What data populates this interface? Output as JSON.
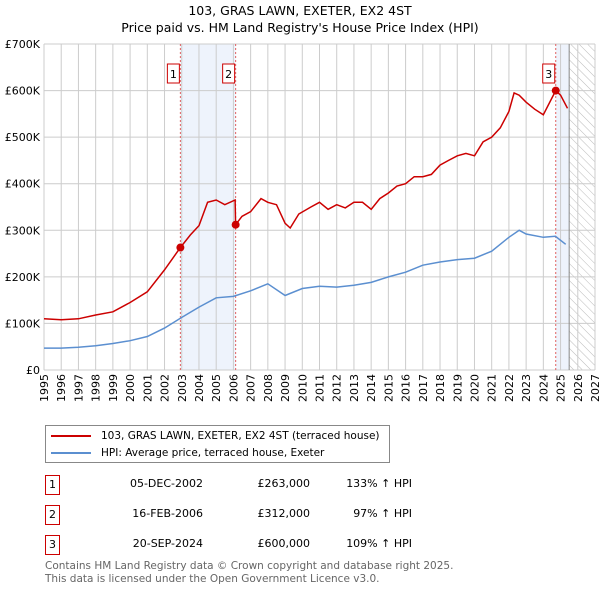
{
  "title": "103, GRAS LAWN, EXETER, EX2 4ST",
  "subtitle": "Price paid vs. HM Land Registry's House Price Index (HPI)",
  "chart_data": {
    "type": "line",
    "title": "103, GRAS LAWN, EXETER, EX2 4ST",
    "subtitle": "Price paid vs. HM Land Registry's House Price Index (HPI)",
    "xlim": [
      1995,
      2027
    ],
    "ylim": [
      0,
      700000
    ],
    "x_ticks": [
      "1995",
      "1996",
      "1997",
      "1998",
      "1999",
      "2000",
      "2001",
      "2002",
      "2003",
      "2004",
      "2005",
      "2006",
      "2007",
      "2008",
      "2009",
      "2010",
      "2011",
      "2012",
      "2013",
      "2014",
      "2015",
      "2016",
      "2017",
      "2018",
      "2019",
      "2020",
      "2021",
      "2022",
      "2023",
      "2024",
      "2025",
      "2026",
      "2027"
    ],
    "y_ticks": [
      {
        "v": 0,
        "label": "£0"
      },
      {
        "v": 100000,
        "label": "£100K"
      },
      {
        "v": 200000,
        "label": "£200K"
      },
      {
        "v": 300000,
        "label": "£300K"
      },
      {
        "v": 400000,
        "label": "£400K"
      },
      {
        "v": 500000,
        "label": "£500K"
      },
      {
        "v": 600000,
        "label": "£600K"
      },
      {
        "v": 700000,
        "label": "£700K"
      }
    ],
    "grid": true,
    "series": [
      {
        "name": "103, GRAS LAWN, EXETER, EX2 4ST (terraced house)",
        "color": "#cc0000",
        "x": [
          1995,
          1996,
          1997,
          1998,
          1999,
          2000,
          2001,
          2002,
          2002.92,
          2003.5,
          2004,
          2004.5,
          2005,
          2005.5,
          2006.1,
          2006.13,
          2006.5,
          2007,
          2007.6,
          2008,
          2008.5,
          2009,
          2009.3,
          2009.8,
          2010.5,
          2011,
          2011.5,
          2012,
          2012.5,
          2013,
          2013.5,
          2014,
          2014.5,
          2015,
          2015.5,
          2016,
          2016.5,
          2017,
          2017.5,
          2018,
          2018.5,
          2019,
          2019.5,
          2020,
          2020.5,
          2021,
          2021.5,
          2022,
          2022.3,
          2022.6,
          2023,
          2023.5,
          2024,
          2024.72,
          2025,
          2025.4
        ],
        "y": [
          110000,
          108000,
          110000,
          118000,
          125000,
          145000,
          168000,
          215000,
          263000,
          290000,
          310000,
          360000,
          365000,
          355000,
          365000,
          312000,
          330000,
          340000,
          368000,
          360000,
          355000,
          315000,
          305000,
          335000,
          350000,
          360000,
          345000,
          355000,
          348000,
          360000,
          360000,
          345000,
          368000,
          380000,
          395000,
          400000,
          415000,
          415000,
          420000,
          440000,
          450000,
          460000,
          465000,
          460000,
          490000,
          500000,
          520000,
          555000,
          595000,
          590000,
          575000,
          560000,
          548000,
          600000,
          590000,
          562000
        ]
      },
      {
        "name": "HPI: Average price, terraced house, Exeter",
        "color": "#5b8fd0",
        "x": [
          1995,
          1996,
          1997,
          1998,
          1999,
          2000,
          2001,
          2002,
          2003,
          2004,
          2005,
          2006,
          2007,
          2008,
          2009,
          2010,
          2011,
          2012,
          2013,
          2014,
          2015,
          2016,
          2017,
          2018,
          2019,
          2020,
          2021,
          2022,
          2022.6,
          2023,
          2024,
          2024.7,
          2025.3
        ],
        "y": [
          47000,
          47000,
          49000,
          52000,
          57000,
          63000,
          72000,
          90000,
          113000,
          135000,
          155000,
          158000,
          170000,
          185000,
          160000,
          175000,
          180000,
          178000,
          182000,
          188000,
          200000,
          210000,
          225000,
          232000,
          237000,
          240000,
          255000,
          285000,
          300000,
          292000,
          285000,
          287000,
          270000
        ]
      }
    ],
    "sales": [
      {
        "label": "1",
        "x": 2002.92,
        "y": 263000
      },
      {
        "label": "2",
        "x": 2006.13,
        "y": 312000
      },
      {
        "label": "3",
        "x": 2024.72,
        "y": 600000
      }
    ],
    "shaded_ranges": [
      [
        2002.92,
        2006.13
      ],
      [
        2024.72,
        2025.5
      ]
    ],
    "forecast_hatch_from": 2025.5
  },
  "legend": {
    "red": "103, GRAS LAWN, EXETER, EX2 4ST (terraced house)",
    "blue": "HPI: Average price, terraced house, Exeter"
  },
  "transactions": [
    {
      "num": "1",
      "date": "05-DEC-2002",
      "price": "£263,000",
      "hpi": "133% ↑ HPI"
    },
    {
      "num": "2",
      "date": "16-FEB-2006",
      "price": "£312,000",
      "hpi": "97% ↑ HPI"
    },
    {
      "num": "3",
      "date": "20-SEP-2024",
      "price": "£600,000",
      "hpi": "109% ↑ HPI"
    }
  ],
  "footer": {
    "line1": "Contains HM Land Registry data © Crown copyright and database right 2025.",
    "line2": "This data is licensed under the Open Government Licence v3.0."
  }
}
